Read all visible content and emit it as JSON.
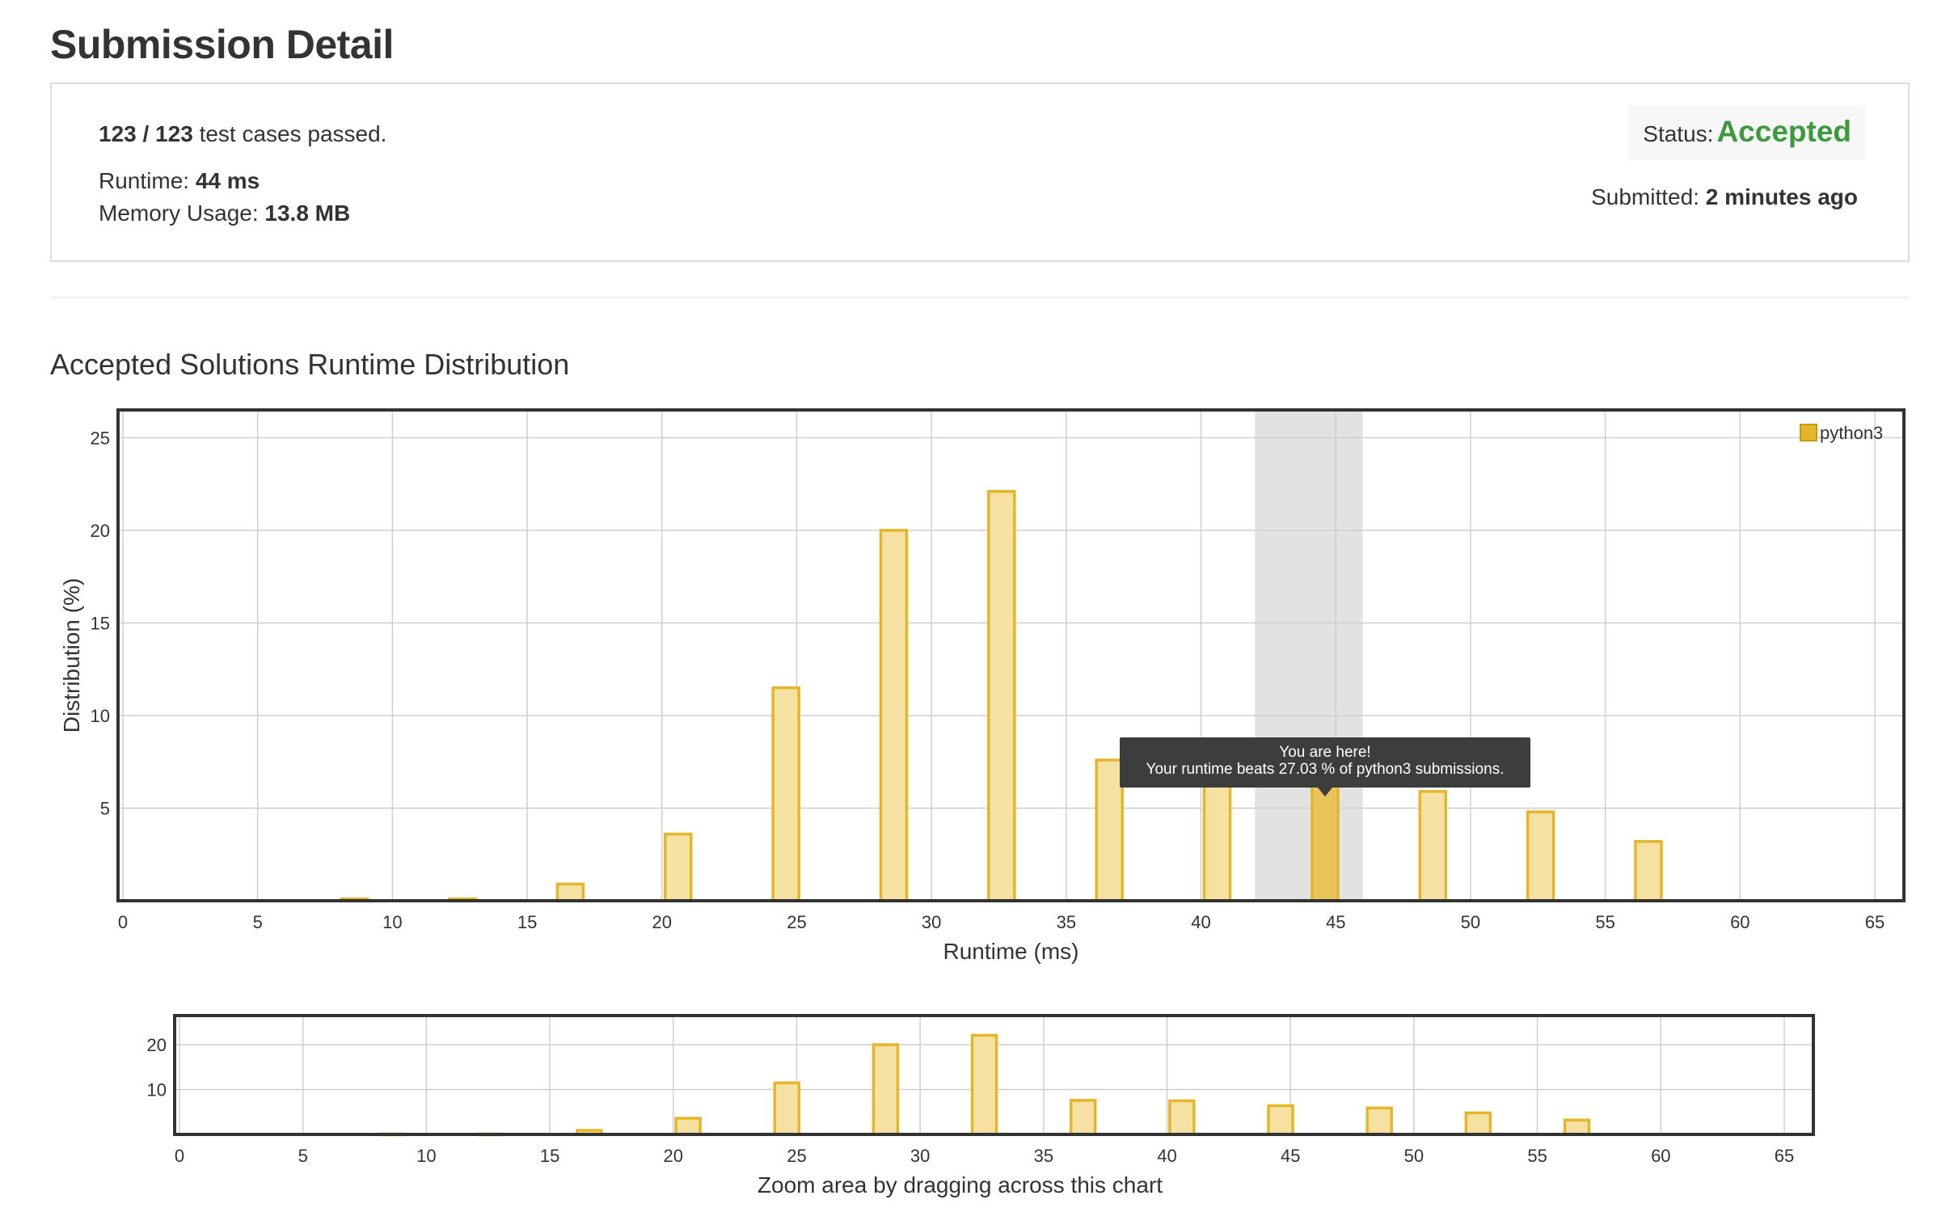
{
  "page": {
    "title": "Submission Detail",
    "test_cases": {
      "count": "123 / 123",
      "suffix": "test cases passed."
    },
    "runtime": {
      "label": "Runtime:",
      "value": "44 ms"
    },
    "memory": {
      "label": "Memory Usage:",
      "value": "13.8 MB"
    },
    "status": {
      "label": "Status:",
      "value": "Accepted"
    },
    "submitted": {
      "label": "Submitted:",
      "value": "2 minutes ago"
    },
    "section_title": "Accepted Solutions Runtime Distribution"
  },
  "colors": {
    "bar_fill": "#f5e2a2",
    "bar_stroke": "#e5b52a",
    "legend": "#e5b52a",
    "highlight_band": "#e2e2e2",
    "accepted": "#3c9a3c",
    "tooltip_bg": "#3d3d3d"
  },
  "chart_data": [
    {
      "type": "bar",
      "xlabel": "Runtime (ms)",
      "ylabel": "Distribution (%)",
      "xlim": [
        0,
        65
      ],
      "ylim": [
        0,
        26.5
      ],
      "xticks": [
        0,
        5,
        10,
        15,
        20,
        25,
        30,
        35,
        40,
        45,
        50,
        55,
        60,
        65
      ],
      "yticks": [
        5,
        10,
        15,
        20,
        25
      ],
      "grid": true,
      "legend": "top-right",
      "series": [
        {
          "name": "python3",
          "x": [
            8.6,
            12.6,
            16.6,
            20.6,
            24.6,
            28.6,
            32.6,
            36.6,
            40.6,
            44.6,
            48.6,
            52.6,
            56.6
          ],
          "values": [
            0.1,
            0.1,
            0.9,
            3.6,
            11.5,
            20,
            22.1,
            7.6,
            7.5,
            6.4,
            5.9,
            4.8,
            3.2
          ]
        }
      ],
      "highlight": {
        "x_range": [
          42,
          46
        ]
      },
      "tooltip": {
        "line1": "You are here!",
        "line2": "Your runtime beats 27.03 % of python3 submissions."
      }
    },
    {
      "type": "bar",
      "xlabel": "Zoom area by dragging across this chart",
      "xlim": [
        0,
        65
      ],
      "ylim": [
        0,
        26.5
      ],
      "xticks": [
        0,
        5,
        10,
        15,
        20,
        25,
        30,
        35,
        40,
        45,
        50,
        55,
        60,
        65
      ],
      "yticks": [
        10,
        20
      ],
      "grid": true,
      "series": [
        {
          "x": [
            8.6,
            12.6,
            16.6,
            20.6,
            24.6,
            28.6,
            32.6,
            36.6,
            40.6,
            44.6,
            48.6,
            52.6,
            56.6
          ],
          "values": [
            0.1,
            0.1,
            0.9,
            3.6,
            11.5,
            20,
            22.1,
            7.6,
            7.5,
            6.4,
            5.9,
            4.8,
            3.2
          ]
        }
      ]
    }
  ]
}
